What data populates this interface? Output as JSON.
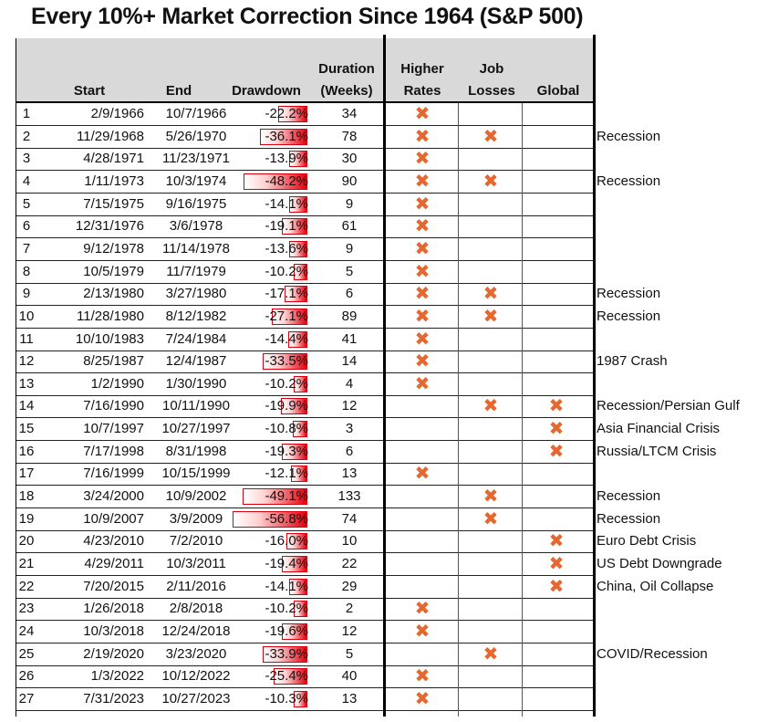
{
  "title": "Every 10%+ Market Correction Since 1964 (S&P 500)",
  "headers": {
    "start": "Start",
    "end": "End",
    "drawdown": "Drawdown",
    "duration_1": "Duration",
    "duration_2": "(Weeks)",
    "rates_1": "Higher",
    "rates_2": "Rates",
    "jobs_1": "Job",
    "jobs_2": "Losses",
    "global": "Global"
  },
  "colors": {
    "bar_red": "#e3000f",
    "x_mark": "#e4682f",
    "header_band": "#d9d9d9"
  },
  "x_mark_icon": "✖",
  "rows": [
    {
      "n": "1",
      "start": "2/9/1966",
      "end": "10/7/1966",
      "drawdown": "-22.2%",
      "dd": 22.2,
      "weeks": "34",
      "rates": true,
      "jobs": false,
      "global": false,
      "note": ""
    },
    {
      "n": "2",
      "start": "11/29/1968",
      "end": "5/26/1970",
      "drawdown": "-36.1%",
      "dd": 36.1,
      "weeks": "78",
      "rates": true,
      "jobs": true,
      "global": false,
      "note": "Recession"
    },
    {
      "n": "3",
      "start": "4/28/1971",
      "end": "11/23/1971",
      "drawdown": "-13.9%",
      "dd": 13.9,
      "weeks": "30",
      "rates": true,
      "jobs": false,
      "global": false,
      "note": ""
    },
    {
      "n": "4",
      "start": "1/11/1973",
      "end": "10/3/1974",
      "drawdown": "-48.2%",
      "dd": 48.2,
      "weeks": "90",
      "rates": true,
      "jobs": true,
      "global": false,
      "note": "Recession"
    },
    {
      "n": "5",
      "start": "7/15/1975",
      "end": "9/16/1975",
      "drawdown": "-14.1%",
      "dd": 14.1,
      "weeks": "9",
      "rates": true,
      "jobs": false,
      "global": false,
      "note": ""
    },
    {
      "n": "6",
      "start": "12/31/1976",
      "end": "3/6/1978",
      "drawdown": "-19.1%",
      "dd": 19.1,
      "weeks": "61",
      "rates": true,
      "jobs": false,
      "global": false,
      "note": ""
    },
    {
      "n": "7",
      "start": "9/12/1978",
      "end": "11/14/1978",
      "drawdown": "-13.6%",
      "dd": 13.6,
      "weeks": "9",
      "rates": true,
      "jobs": false,
      "global": false,
      "note": ""
    },
    {
      "n": "8",
      "start": "10/5/1979",
      "end": "11/7/1979",
      "drawdown": "-10.2%",
      "dd": 10.2,
      "weeks": "5",
      "rates": true,
      "jobs": false,
      "global": false,
      "note": ""
    },
    {
      "n": "9",
      "start": "2/13/1980",
      "end": "3/27/1980",
      "drawdown": "-17.1%",
      "dd": 17.1,
      "weeks": "6",
      "rates": true,
      "jobs": true,
      "global": false,
      "note": "Recession"
    },
    {
      "n": "10",
      "start": "11/28/1980",
      "end": "8/12/1982",
      "drawdown": "-27.1%",
      "dd": 27.1,
      "weeks": "89",
      "rates": true,
      "jobs": true,
      "global": false,
      "note": "Recession"
    },
    {
      "n": "11",
      "start": "10/10/1983",
      "end": "7/24/1984",
      "drawdown": "-14.4%",
      "dd": 14.4,
      "weeks": "41",
      "rates": true,
      "jobs": false,
      "global": false,
      "note": ""
    },
    {
      "n": "12",
      "start": "8/25/1987",
      "end": "12/4/1987",
      "drawdown": "-33.5%",
      "dd": 33.5,
      "weeks": "14",
      "rates": true,
      "jobs": false,
      "global": false,
      "note": "1987 Crash"
    },
    {
      "n": "13",
      "start": "1/2/1990",
      "end": "1/30/1990",
      "drawdown": "-10.2%",
      "dd": 10.2,
      "weeks": "4",
      "rates": true,
      "jobs": false,
      "global": false,
      "note": ""
    },
    {
      "n": "14",
      "start": "7/16/1990",
      "end": "10/11/1990",
      "drawdown": "-19.9%",
      "dd": 19.9,
      "weeks": "12",
      "rates": false,
      "jobs": true,
      "global": true,
      "note": "Recession/Persian Gulf"
    },
    {
      "n": "15",
      "start": "10/7/1997",
      "end": "10/27/1997",
      "drawdown": "-10.8%",
      "dd": 10.8,
      "weeks": "3",
      "rates": false,
      "jobs": false,
      "global": true,
      "note": "Asia Financial Crisis"
    },
    {
      "n": "16",
      "start": "7/17/1998",
      "end": "8/31/1998",
      "drawdown": "-19.3%",
      "dd": 19.3,
      "weeks": "6",
      "rates": false,
      "jobs": false,
      "global": true,
      "note": "Russia/LTCM Crisis"
    },
    {
      "n": "17",
      "start": "7/16/1999",
      "end": "10/15/1999",
      "drawdown": "-12.1%",
      "dd": 12.1,
      "weeks": "13",
      "rates": true,
      "jobs": false,
      "global": false,
      "note": ""
    },
    {
      "n": "18",
      "start": "3/24/2000",
      "end": "10/9/2002",
      "drawdown": "-49.1%",
      "dd": 49.1,
      "weeks": "133",
      "rates": false,
      "jobs": true,
      "global": false,
      "note": "Recession"
    },
    {
      "n": "19",
      "start": "10/9/2007",
      "end": "3/9/2009",
      "drawdown": "-56.8%",
      "dd": 56.8,
      "weeks": "74",
      "rates": false,
      "jobs": true,
      "global": false,
      "note": "Recession"
    },
    {
      "n": "20",
      "start": "4/23/2010",
      "end": "7/2/2010",
      "drawdown": "-16.0%",
      "dd": 16.0,
      "weeks": "10",
      "rates": false,
      "jobs": false,
      "global": true,
      "note": "Euro Debt Crisis"
    },
    {
      "n": "21",
      "start": "4/29/2011",
      "end": "10/3/2011",
      "drawdown": "-19.4%",
      "dd": 19.4,
      "weeks": "22",
      "rates": false,
      "jobs": false,
      "global": true,
      "note": "US Debt Downgrade"
    },
    {
      "n": "22",
      "start": "7/20/2015",
      "end": "2/11/2016",
      "drawdown": "-14.1%",
      "dd": 14.1,
      "weeks": "29",
      "rates": false,
      "jobs": false,
      "global": true,
      "note": "China, Oil Collapse"
    },
    {
      "n": "23",
      "start": "1/26/2018",
      "end": "2/8/2018",
      "drawdown": "-10.2%",
      "dd": 10.2,
      "weeks": "2",
      "rates": true,
      "jobs": false,
      "global": false,
      "note": ""
    },
    {
      "n": "24",
      "start": "10/3/2018",
      "end": "12/24/2018",
      "drawdown": "-19.6%",
      "dd": 19.6,
      "weeks": "12",
      "rates": true,
      "jobs": false,
      "global": false,
      "note": ""
    },
    {
      "n": "25",
      "start": "2/19/2020",
      "end": "3/23/2020",
      "drawdown": "-33.9%",
      "dd": 33.9,
      "weeks": "5",
      "rates": false,
      "jobs": true,
      "global": false,
      "note": "COVID/Recession"
    },
    {
      "n": "26",
      "start": "1/3/2022",
      "end": "10/12/2022",
      "drawdown": "-25.4%",
      "dd": 25.4,
      "weeks": "40",
      "rates": true,
      "jobs": false,
      "global": false,
      "note": ""
    },
    {
      "n": "27",
      "start": "7/31/2023",
      "end": "10/27/2023",
      "drawdown": "-10.3%",
      "dd": 10.3,
      "weeks": "13",
      "rates": true,
      "jobs": false,
      "global": false,
      "note": ""
    }
  ]
}
